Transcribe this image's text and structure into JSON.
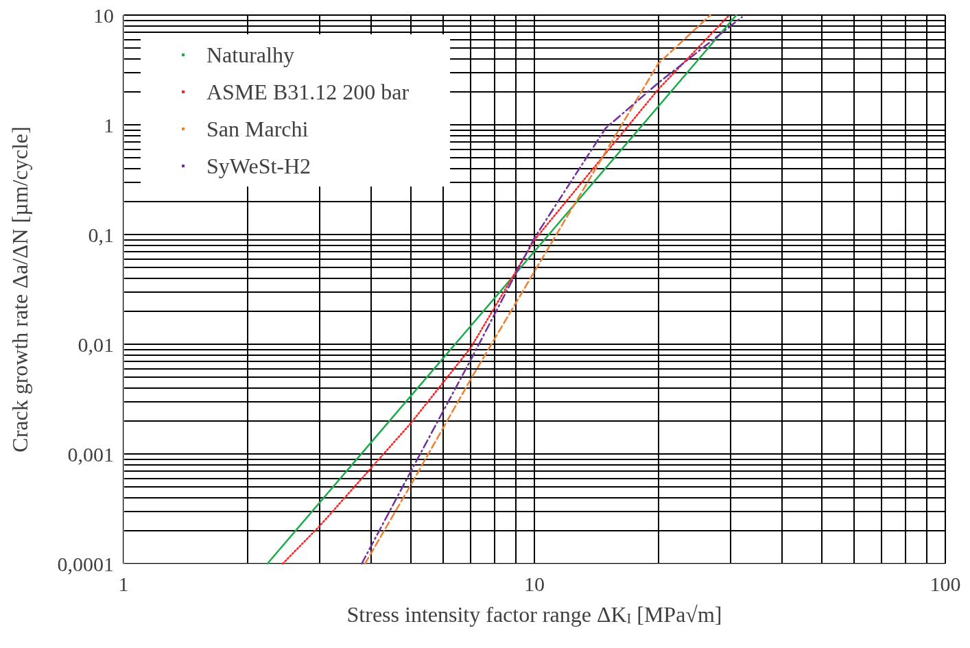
{
  "chart_data": {
    "type": "line",
    "xlabel": "Stress intensity factor range ΔK$_{I}$ [MPa√m]",
    "ylabel": "Crack growth rate Δa/ΔN [µm/cycle]",
    "log": "xy",
    "grid": true,
    "legend": "top left",
    "marker": "none",
    "xlim": [
      1,
      100
    ],
    "xticks": [
      1,
      10,
      100
    ],
    "ylim": [
      0.0001,
      10
    ],
    "yticks": [
      {
        "value": 0.0001,
        "label": "0,0001"
      },
      {
        "value": 0.001,
        "label": "0,001"
      },
      {
        "value": 0.01,
        "label": "0,01"
      },
      {
        "value": 0.1,
        "label": "0,1"
      },
      1,
      10
    ],
    "series": [
      {
        "name": "Naturalhy",
        "color": "#1aab4a",
        "line_style": "solid",
        "x": [
          2.24,
          10,
          31
        ],
        "values": [
          0.0001,
          0.07,
          10
        ]
      },
      {
        "name": "ASME B31.12 200 bar",
        "color": "#ff2020",
        "line_style": "dotted",
        "x": [
          2.44,
          3,
          5,
          7,
          10,
          20,
          29.8
        ],
        "values": [
          0.0001,
          0.00022,
          0.0019,
          0.0093,
          0.089,
          2.1,
          10
        ]
      },
      {
        "name": "San Marchi",
        "color": "#f08030",
        "line_style": "dashed",
        "x": [
          3.87,
          5,
          7,
          10,
          20,
          26.8
        ],
        "values": [
          0.0001,
          0.00052,
          0.0048,
          0.046,
          3.6,
          10
        ]
      },
      {
        "name": "SyWeSt-H2",
        "color": "#7030a0",
        "line_style": "dashdot",
        "x": [
          3.8,
          5,
          7,
          10,
          14.9,
          20,
          32
        ],
        "values": [
          0.0001,
          0.00069,
          0.0072,
          0.093,
          0.93,
          2.4,
          9.6
        ]
      }
    ]
  }
}
